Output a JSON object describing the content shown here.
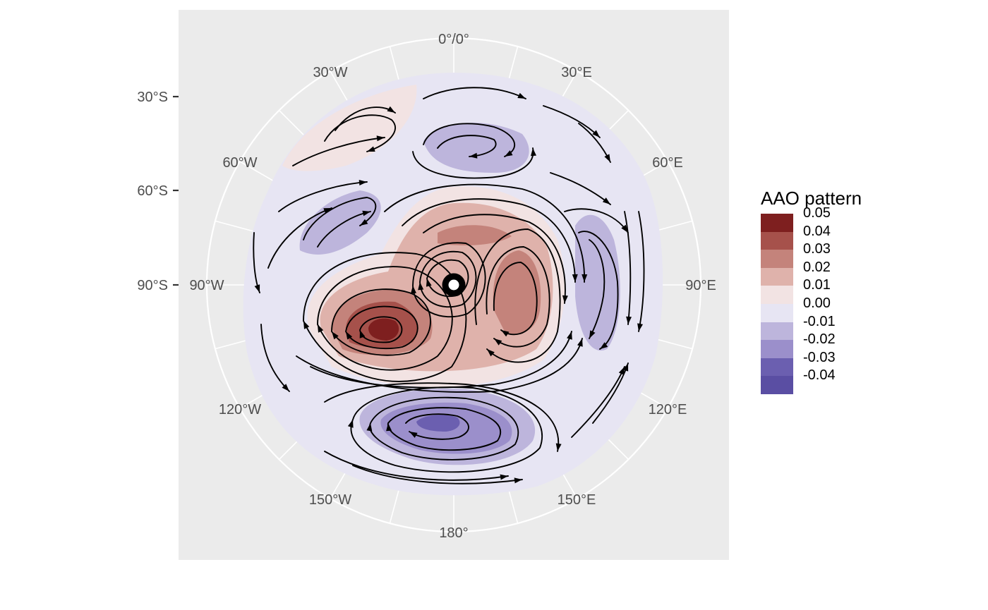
{
  "map": {
    "latitude_labels": [
      "30°S",
      "60°S",
      "90°S"
    ],
    "longitude_labels": [
      "0°/0°",
      "30°E",
      "60°E",
      "90°E",
      "120°E",
      "150°E",
      "180°",
      "150°W",
      "120°W",
      "90°W",
      "60°W",
      "30°W"
    ],
    "colors": {
      "panel": "#ebebeb",
      "grid": "#ffffff",
      "field_background": "#e7e5f3",
      "streamline": "#000000"
    },
    "regions": [
      {
        "sign": "positive",
        "level": "0.05",
        "lon": -145,
        "colat": 13
      },
      {
        "sign": "positive",
        "level": "0.04",
        "lon": -145,
        "colat": 13
      },
      {
        "sign": "positive",
        "level": "0.03",
        "lon": 100,
        "colat": 6
      },
      {
        "sign": "negative",
        "level": "-0.03",
        "lon": 180,
        "colat": 14
      },
      {
        "sign": "negative",
        "level": "-0.02",
        "lon": 85,
        "colat": 24
      },
      {
        "sign": "negative",
        "level": "-0.02",
        "lon": 10,
        "colat": 26
      },
      {
        "sign": "negative",
        "level": "-0.02",
        "lon": -58,
        "colat": 28
      }
    ]
  },
  "legend": {
    "title": "AAO pattern",
    "entries": [
      {
        "label": "0.05",
        "color": "#7e1f1f"
      },
      {
        "label": "0.04",
        "color": "#a6514b"
      },
      {
        "label": "0.03",
        "color": "#c4837b"
      },
      {
        "label": "0.02",
        "color": "#dfb2ab"
      },
      {
        "label": "0.01",
        "color": "#f2e3e3"
      },
      {
        "label": "0.00",
        "color": "#e7e5f3"
      },
      {
        "label": "-0.01",
        "color": "#bdb5dc"
      },
      {
        "label": "-0.02",
        "color": "#9b8fcb"
      },
      {
        "label": "-0.03",
        "color": "#6b5fb0"
      },
      {
        "label": "-0.04",
        "color": "#5a4ea3"
      }
    ]
  }
}
